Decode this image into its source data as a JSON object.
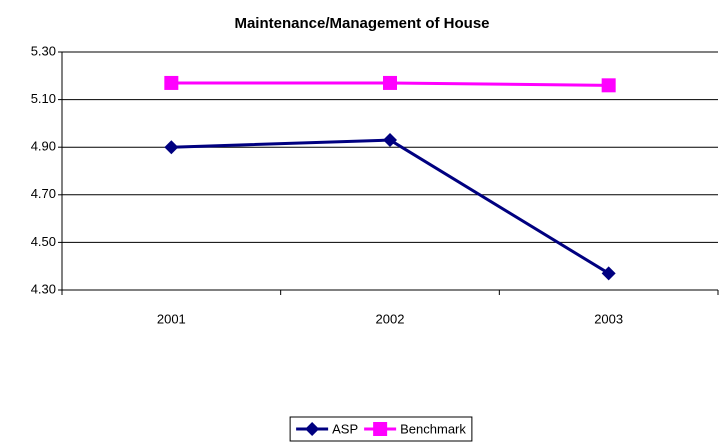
{
  "chart_data": {
    "type": "line",
    "title": "Maintenance/Management of House",
    "categories": [
      "2001",
      "2002",
      "2003"
    ],
    "series": [
      {
        "name": "ASP",
        "color": "#000080",
        "marker": "diamond",
        "values": [
          4.9,
          4.93,
          4.37
        ]
      },
      {
        "name": "Benchmark",
        "color": "#ff00ff",
        "marker": "square",
        "values": [
          5.17,
          5.17,
          5.16
        ]
      }
    ],
    "ylim": [
      4.3,
      5.3
    ],
    "yticks": [
      {
        "value": 4.3,
        "label": "4.30"
      },
      {
        "value": 4.5,
        "label": "4.50"
      },
      {
        "value": 4.7,
        "label": "4.70"
      },
      {
        "value": 4.9,
        "label": "4.90"
      },
      {
        "value": 5.1,
        "label": "5.10"
      },
      {
        "value": 5.3,
        "label": "5.30"
      }
    ],
    "grid": true,
    "legend": "bottom"
  }
}
